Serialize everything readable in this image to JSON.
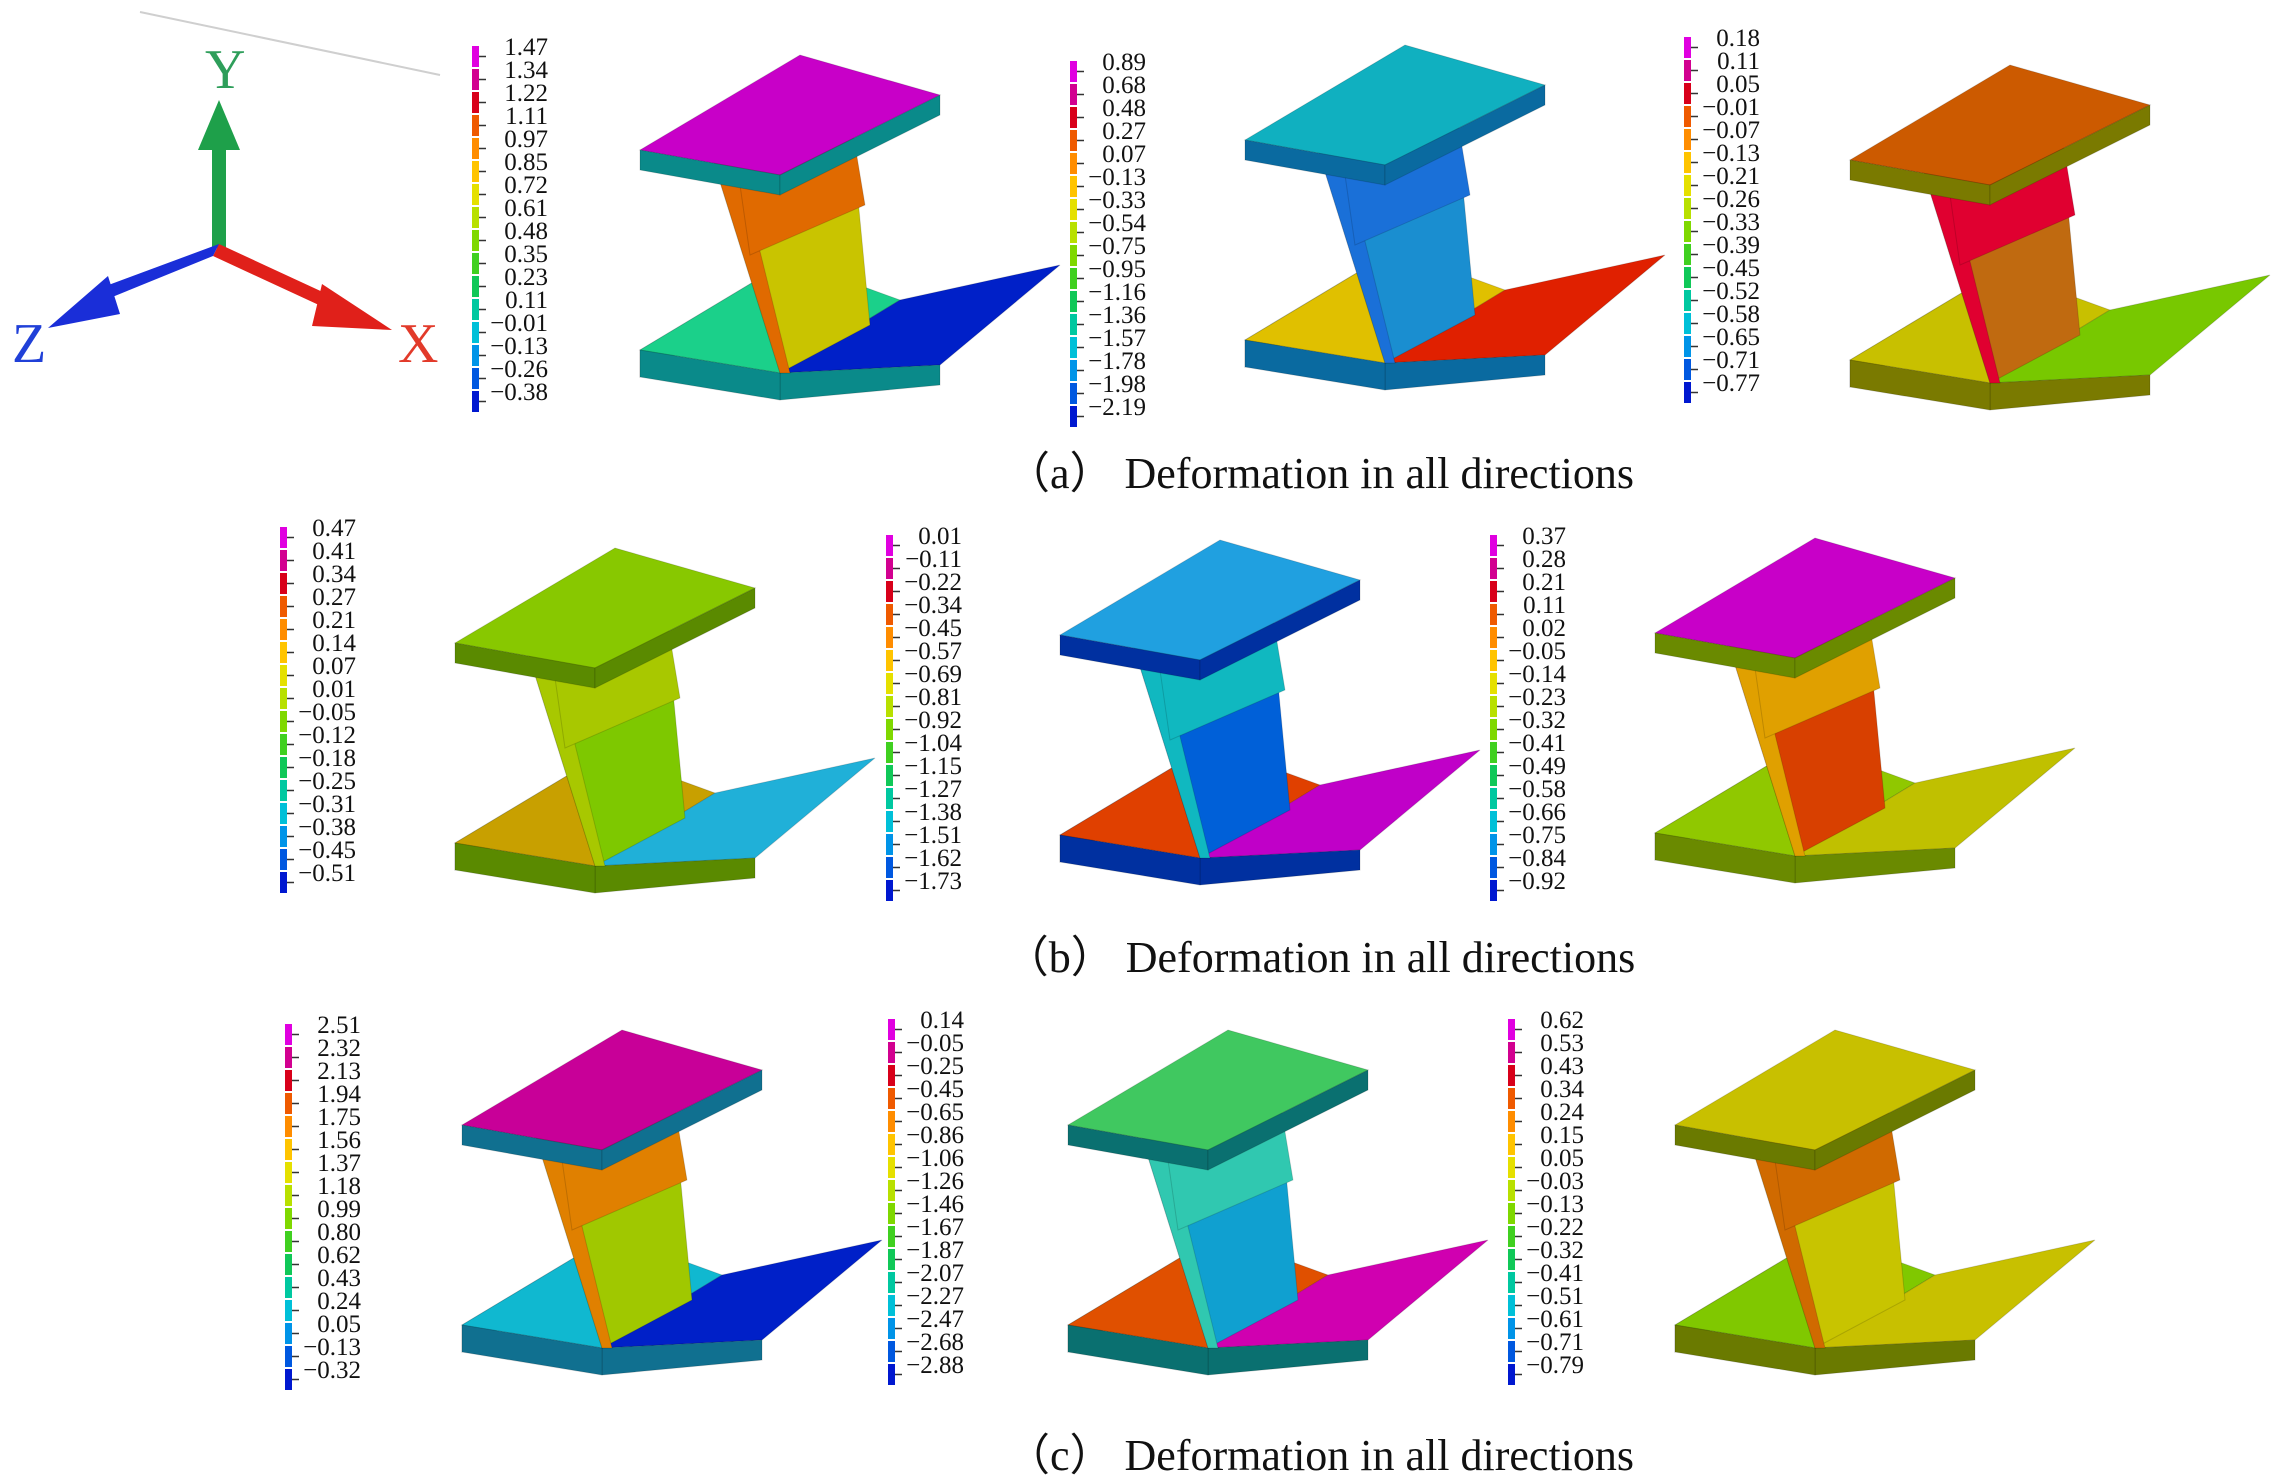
{
  "axes": {
    "labels": [
      {
        "text": "Y",
        "color": "#2e9e5a"
      },
      {
        "text": "Z",
        "color": "#2040d8"
      },
      {
        "text": "X",
        "color": "#e23a2a"
      }
    ]
  },
  "legend_colors": [
    "#e000e0",
    "#d20090",
    "#d8001a",
    "#ef5a00",
    "#ff8d00",
    "#ffc400",
    "#e5e000",
    "#b8e000",
    "#7fd800",
    "#40d020",
    "#10c858",
    "#00c8a0",
    "#00c0d8",
    "#0094e8",
    "#0058e0",
    "#0018d0"
  ],
  "rows": [
    {
      "caption": "（a） Deformation in all directions",
      "panels": [
        {
          "legend": [
            "1.47",
            "1.34",
            "1.22",
            "1.11",
            "0.97",
            "0.85",
            "0.72",
            "0.61",
            "0.48",
            "0.35",
            "0.23",
            "0.11",
            "−0.01",
            "−0.13",
            "−0.26",
            "−0.38"
          ],
          "colors": {
            "top": "#c800c8",
            "web": "#c9c400",
            "web2": "#e06a00",
            "bottom": "#1bd08a",
            "bottom2": "#0020c8",
            "edge": "#0a8a8a"
          }
        },
        {
          "legend": [
            "0.89",
            "0.68",
            "0.48",
            "0.27",
            "0.07",
            "−0.13",
            "−0.33",
            "−0.54",
            "−0.75",
            "−0.95",
            "−1.16",
            "−1.36",
            "−1.57",
            "−1.78",
            "−1.98",
            "−2.19"
          ],
          "colors": {
            "top": "#10b0c0",
            "web": "#1a8ed0",
            "web2": "#1a70d8",
            "bottom": "#e0c000",
            "bottom2": "#e02000",
            "edge": "#0a6aa0"
          }
        },
        {
          "legend": [
            "0.18",
            "0.11",
            "0.05",
            "−0.01",
            "−0.07",
            "−0.13",
            "−0.21",
            "−0.26",
            "−0.33",
            "−0.39",
            "−0.45",
            "−0.52",
            "−0.58",
            "−0.65",
            "−0.71",
            "−0.77"
          ],
          "colors": {
            "top": "#cc5a00",
            "web": "#c06a10",
            "web2": "#e00030",
            "bottom": "#c8c000",
            "bottom2": "#78c800",
            "edge": "#7a7a00"
          }
        }
      ]
    },
    {
      "caption": "（b） Deformation in all directions",
      "panels": [
        {
          "legend": [
            "0.47",
            "0.41",
            "0.34",
            "0.27",
            "0.21",
            "0.14",
            "0.07",
            "0.01",
            "−0.05",
            "−0.12",
            "−0.18",
            "−0.25",
            "−0.31",
            "−0.38",
            "−0.45",
            "−0.51"
          ],
          "colors": {
            "top": "#88c800",
            "web": "#7ec800",
            "web2": "#a8c800",
            "bottom": "#c8a000",
            "bottom2": "#20b0d8",
            "edge": "#5a8a00"
          }
        },
        {
          "legend": [
            "0.01",
            "−0.11",
            "−0.22",
            "−0.34",
            "−0.45",
            "−0.57",
            "−0.69",
            "−0.81",
            "−0.92",
            "−1.04",
            "−1.15",
            "−1.27",
            "−1.38",
            "−1.51",
            "−1.62",
            "−1.73"
          ],
          "colors": {
            "top": "#20a0e0",
            "web": "#0060d8",
            "web2": "#10b8c0",
            "bottom": "#e04000",
            "bottom2": "#c000c8",
            "edge": "#0030a0"
          }
        },
        {
          "legend": [
            "0.37",
            "0.28",
            "0.21",
            "0.11",
            "0.02",
            "−0.05",
            "−0.14",
            "−0.23",
            "−0.32",
            "−0.41",
            "−0.49",
            "−0.58",
            "−0.66",
            "−0.75",
            "−0.84",
            "−0.92"
          ],
          "colors": {
            "top": "#c800c8",
            "web": "#d84000",
            "web2": "#e0a000",
            "bottom": "#90c800",
            "bottom2": "#c0c000",
            "edge": "#6a8a00"
          }
        }
      ]
    },
    {
      "caption": "（c） Deformation in all directions",
      "panels": [
        {
          "legend": [
            "2.51",
            "2.32",
            "2.13",
            "1.94",
            "1.75",
            "1.56",
            "1.37",
            "1.18",
            "0.99",
            "0.80",
            "0.62",
            "0.43",
            "0.24",
            "0.05",
            "−0.13",
            "−0.32"
          ],
          "colors": {
            "top": "#c80098",
            "web": "#a0c800",
            "web2": "#e08000",
            "bottom": "#10b8d0",
            "bottom2": "#0020c8",
            "edge": "#107090"
          }
        },
        {
          "legend": [
            "0.14",
            "−0.05",
            "−0.25",
            "−0.45",
            "−0.65",
            "−0.86",
            "−1.06",
            "−1.26",
            "−1.46",
            "−1.67",
            "−1.87",
            "−2.07",
            "−2.27",
            "−2.47",
            "−2.68",
            "−2.88"
          ],
          "colors": {
            "top": "#40c860",
            "web": "#10a0d0",
            "web2": "#30c8b0",
            "bottom": "#e05000",
            "bottom2": "#d000b0",
            "edge": "#0a7070"
          }
        },
        {
          "legend": [
            "0.62",
            "0.53",
            "0.43",
            "0.34",
            "0.24",
            "0.15",
            "0.05",
            "−0.03",
            "−0.13",
            "−0.22",
            "−0.32",
            "−0.41",
            "−0.51",
            "−0.61",
            "−0.71",
            "−0.79"
          ],
          "colors": {
            "top": "#c8c000",
            "web": "#c8c400",
            "web2": "#d06a00",
            "bottom": "#80c800",
            "bottom2": "#c8c000",
            "edge": "#6a7a00"
          }
        }
      ]
    }
  ]
}
